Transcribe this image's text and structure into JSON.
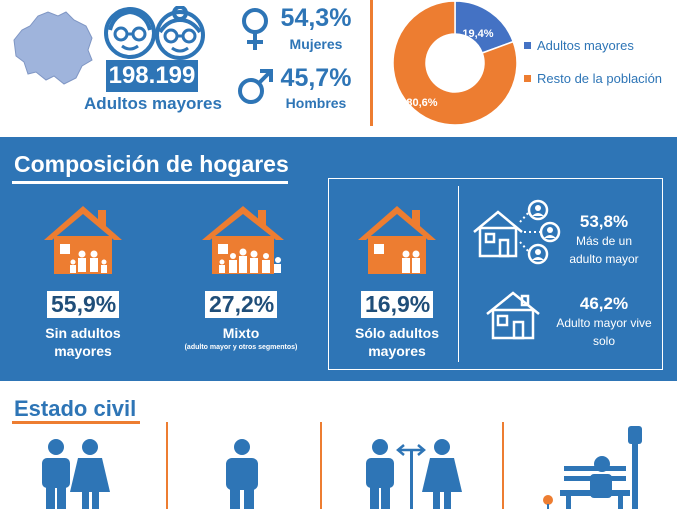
{
  "summary": {
    "total_value": "198.199",
    "total_label": "Adultos mayores",
    "female_pct": "54,3%",
    "female_label": "Mujeres",
    "male_pct": "45,7%",
    "male_label": "Hombres"
  },
  "chart_data": {
    "type": "pie",
    "donut": true,
    "categories": [
      "Adultos mayores",
      "Resto de la población"
    ],
    "values": [
      19.4,
      80.6
    ],
    "data_labels": [
      "19,4%",
      "80,6%"
    ],
    "colors": [
      "#4472c4",
      "#ed7d31"
    ],
    "legend_placement": "right"
  },
  "hogares": {
    "title": "Composición de hogares",
    "sin_adultos": {
      "pct": "55,9%",
      "label": "Sin adultos mayores"
    },
    "mixto": {
      "pct": "27,2%",
      "label": "Mixto",
      "note": "(adulto mayor y otros segmentos)"
    },
    "solo_adultos": {
      "pct": "16,9%",
      "label": "Sólo adultos mayores"
    },
    "mas_de_uno": {
      "pct": "53,8%",
      "label": "Más de un adulto mayor"
    },
    "vive_solo": {
      "pct": "46,2%",
      "label": "Adulto mayor vive solo"
    }
  },
  "estado_civil": {
    "title": "Estado civil"
  },
  "colors": {
    "blue": "#2e75b6",
    "dark_blue": "#1f4e79",
    "orange": "#ed7d31",
    "map": "#9fb4dc"
  }
}
